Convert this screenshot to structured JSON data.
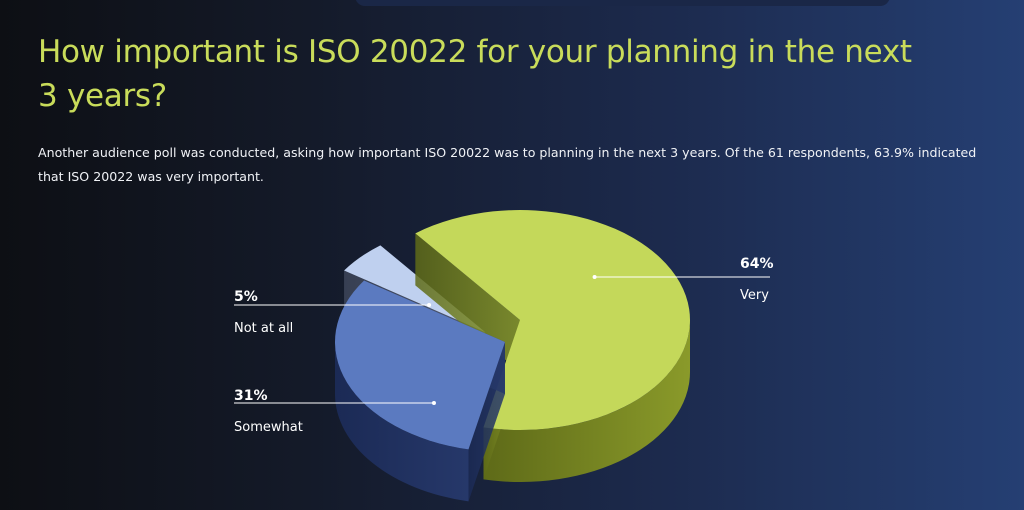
{
  "page": {
    "title": "How important is ISO 20022 for your planning in the next 3 years?",
    "description": "Another audience poll was conducted, asking how important ISO 20022 was to planning in the next 3 years. Of the 61 respondents, 63.9% indicated that ISO 20022 was very important."
  },
  "colors": {
    "title": "#c9dc5a",
    "background_left": "#0d0f14",
    "background_right": "#253f73"
  },
  "chart_data": {
    "type": "pie",
    "title": "",
    "categories": [
      "Very",
      "Somewhat",
      "Not at all"
    ],
    "values": [
      64,
      31,
      5
    ],
    "value_labels": [
      "64%",
      "31%",
      "5%"
    ],
    "colors": [
      "#c4d85a",
      "#5b7ac0",
      "#bfd0ef"
    ],
    "legend": "none",
    "style": "3d-exploded"
  }
}
